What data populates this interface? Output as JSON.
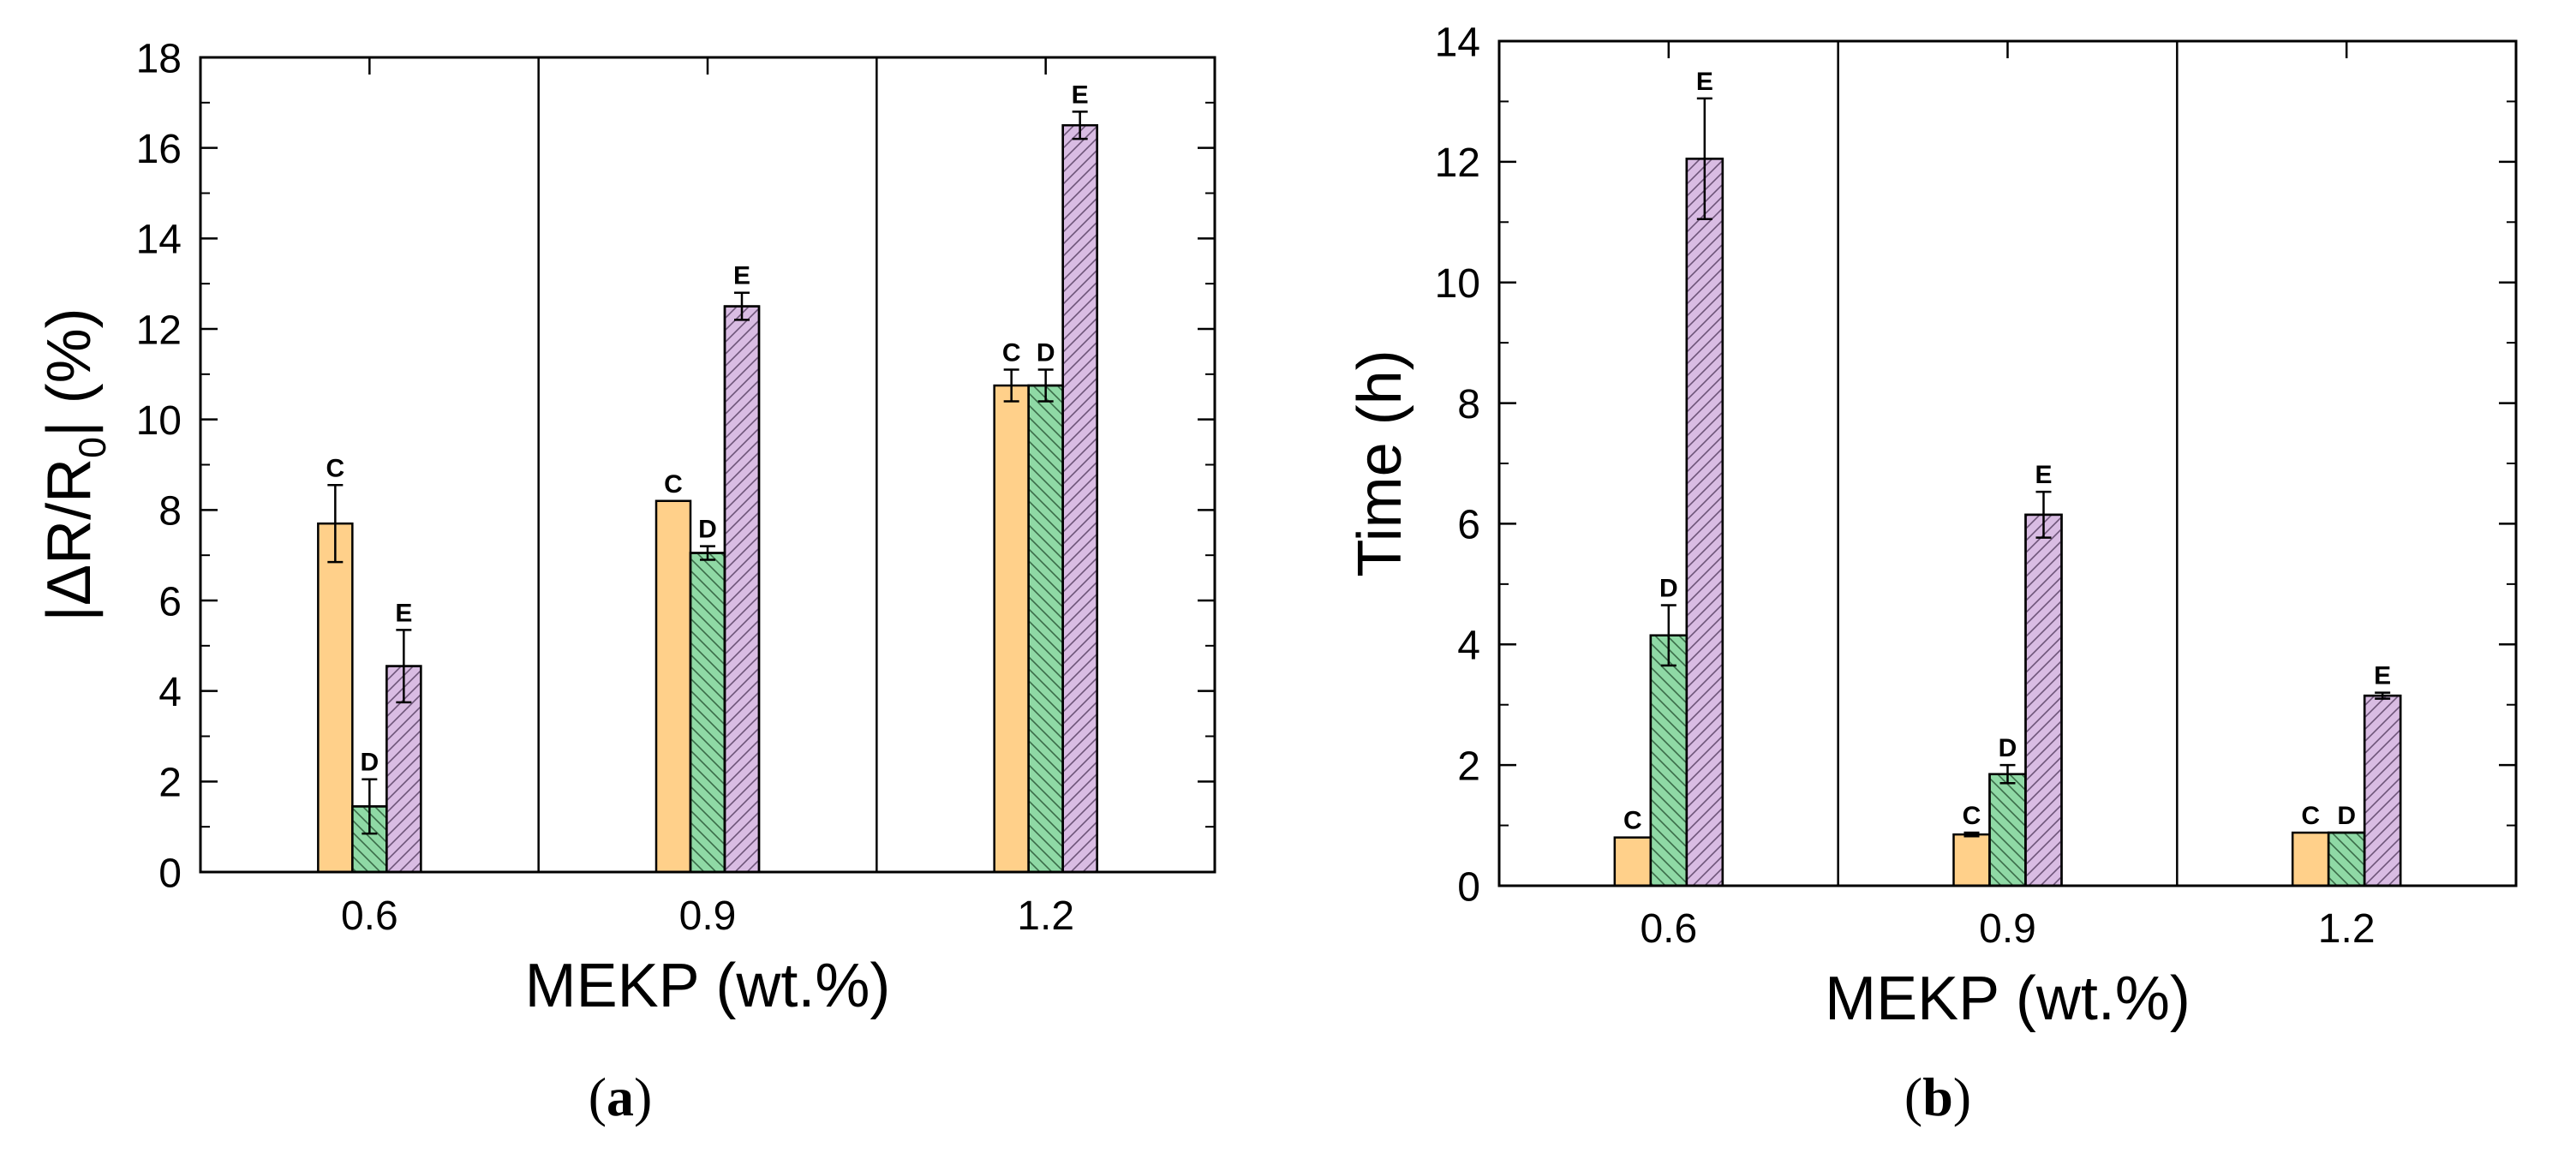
{
  "figure": {
    "panels": [
      {
        "id": "a",
        "panel_label": "(a)",
        "chart_data": {
          "type": "bar",
          "title": "",
          "xlabel": "MEKP (wt.%)",
          "ylabel": "|ΔR/R0| (%)",
          "ylabel_parts": {
            "pre": "|ΔR/R",
            "sub": "0",
            "post": "| (%)"
          },
          "categories": [
            "0.6",
            "0.9",
            "1.2"
          ],
          "ylim": [
            0,
            18
          ],
          "yticks": [
            0,
            2,
            4,
            6,
            8,
            10,
            12,
            14,
            16,
            18
          ],
          "ytick_labels": [
            "0",
            "2",
            "4",
            "6",
            "8",
            "10",
            "12",
            "14",
            "16",
            "18"
          ],
          "vertical_separators": true,
          "grid": false,
          "series": [
            {
              "name": "C",
              "color": "#FFD08A",
              "hatch": "none",
              "values": [
                7.7,
                8.2,
                10.75
              ],
              "errors": [
                0.85,
                0.0,
                0.35
              ],
              "labels": [
                "C",
                "C",
                "C"
              ]
            },
            {
              "name": "D",
              "color": "#8FD9A5",
              "hatch": "backslash",
              "values": [
                1.45,
                7.05,
                10.75
              ],
              "errors": [
                0.6,
                0.15,
                0.35
              ],
              "labels": [
                "D",
                "D",
                "D"
              ]
            },
            {
              "name": "E",
              "color": "#D9BCE3",
              "hatch": "slash",
              "values": [
                4.55,
                12.5,
                16.5
              ],
              "errors": [
                0.8,
                0.3,
                0.3
              ],
              "labels": [
                "E",
                "E",
                "E"
              ]
            }
          ]
        }
      },
      {
        "id": "b",
        "panel_label": "(b)",
        "chart_data": {
          "type": "bar",
          "title": "",
          "xlabel": "MEKP (wt.%)",
          "ylabel": "Time (h)",
          "categories": [
            "0.6",
            "0.9",
            "1.2"
          ],
          "ylim": [
            0,
            14
          ],
          "yticks": [
            0,
            2,
            4,
            6,
            8,
            10,
            12,
            14
          ],
          "ytick_labels": [
            "0",
            "2",
            "4",
            "6",
            "8",
            "10",
            "12",
            "14"
          ],
          "vertical_separators": true,
          "grid": false,
          "series": [
            {
              "name": "C",
              "color": "#FFD08A",
              "hatch": "none",
              "values": [
                0.8,
                0.85,
                0.88
              ],
              "errors": [
                0.0,
                0.03,
                0.0
              ],
              "labels": [
                "C",
                "C",
                "C"
              ]
            },
            {
              "name": "D",
              "color": "#8FD9A5",
              "hatch": "backslash",
              "values": [
                4.15,
                1.85,
                0.88
              ],
              "errors": [
                0.5,
                0.15,
                0.0
              ],
              "labels": [
                "D",
                "D",
                "D"
              ]
            },
            {
              "name": "E",
              "color": "#D9BCE3",
              "hatch": "slash",
              "values": [
                12.05,
                6.15,
                3.15
              ],
              "errors": [
                1.0,
                0.38,
                0.05
              ],
              "labels": [
                "E",
                "E",
                "E"
              ]
            }
          ]
        }
      }
    ]
  }
}
